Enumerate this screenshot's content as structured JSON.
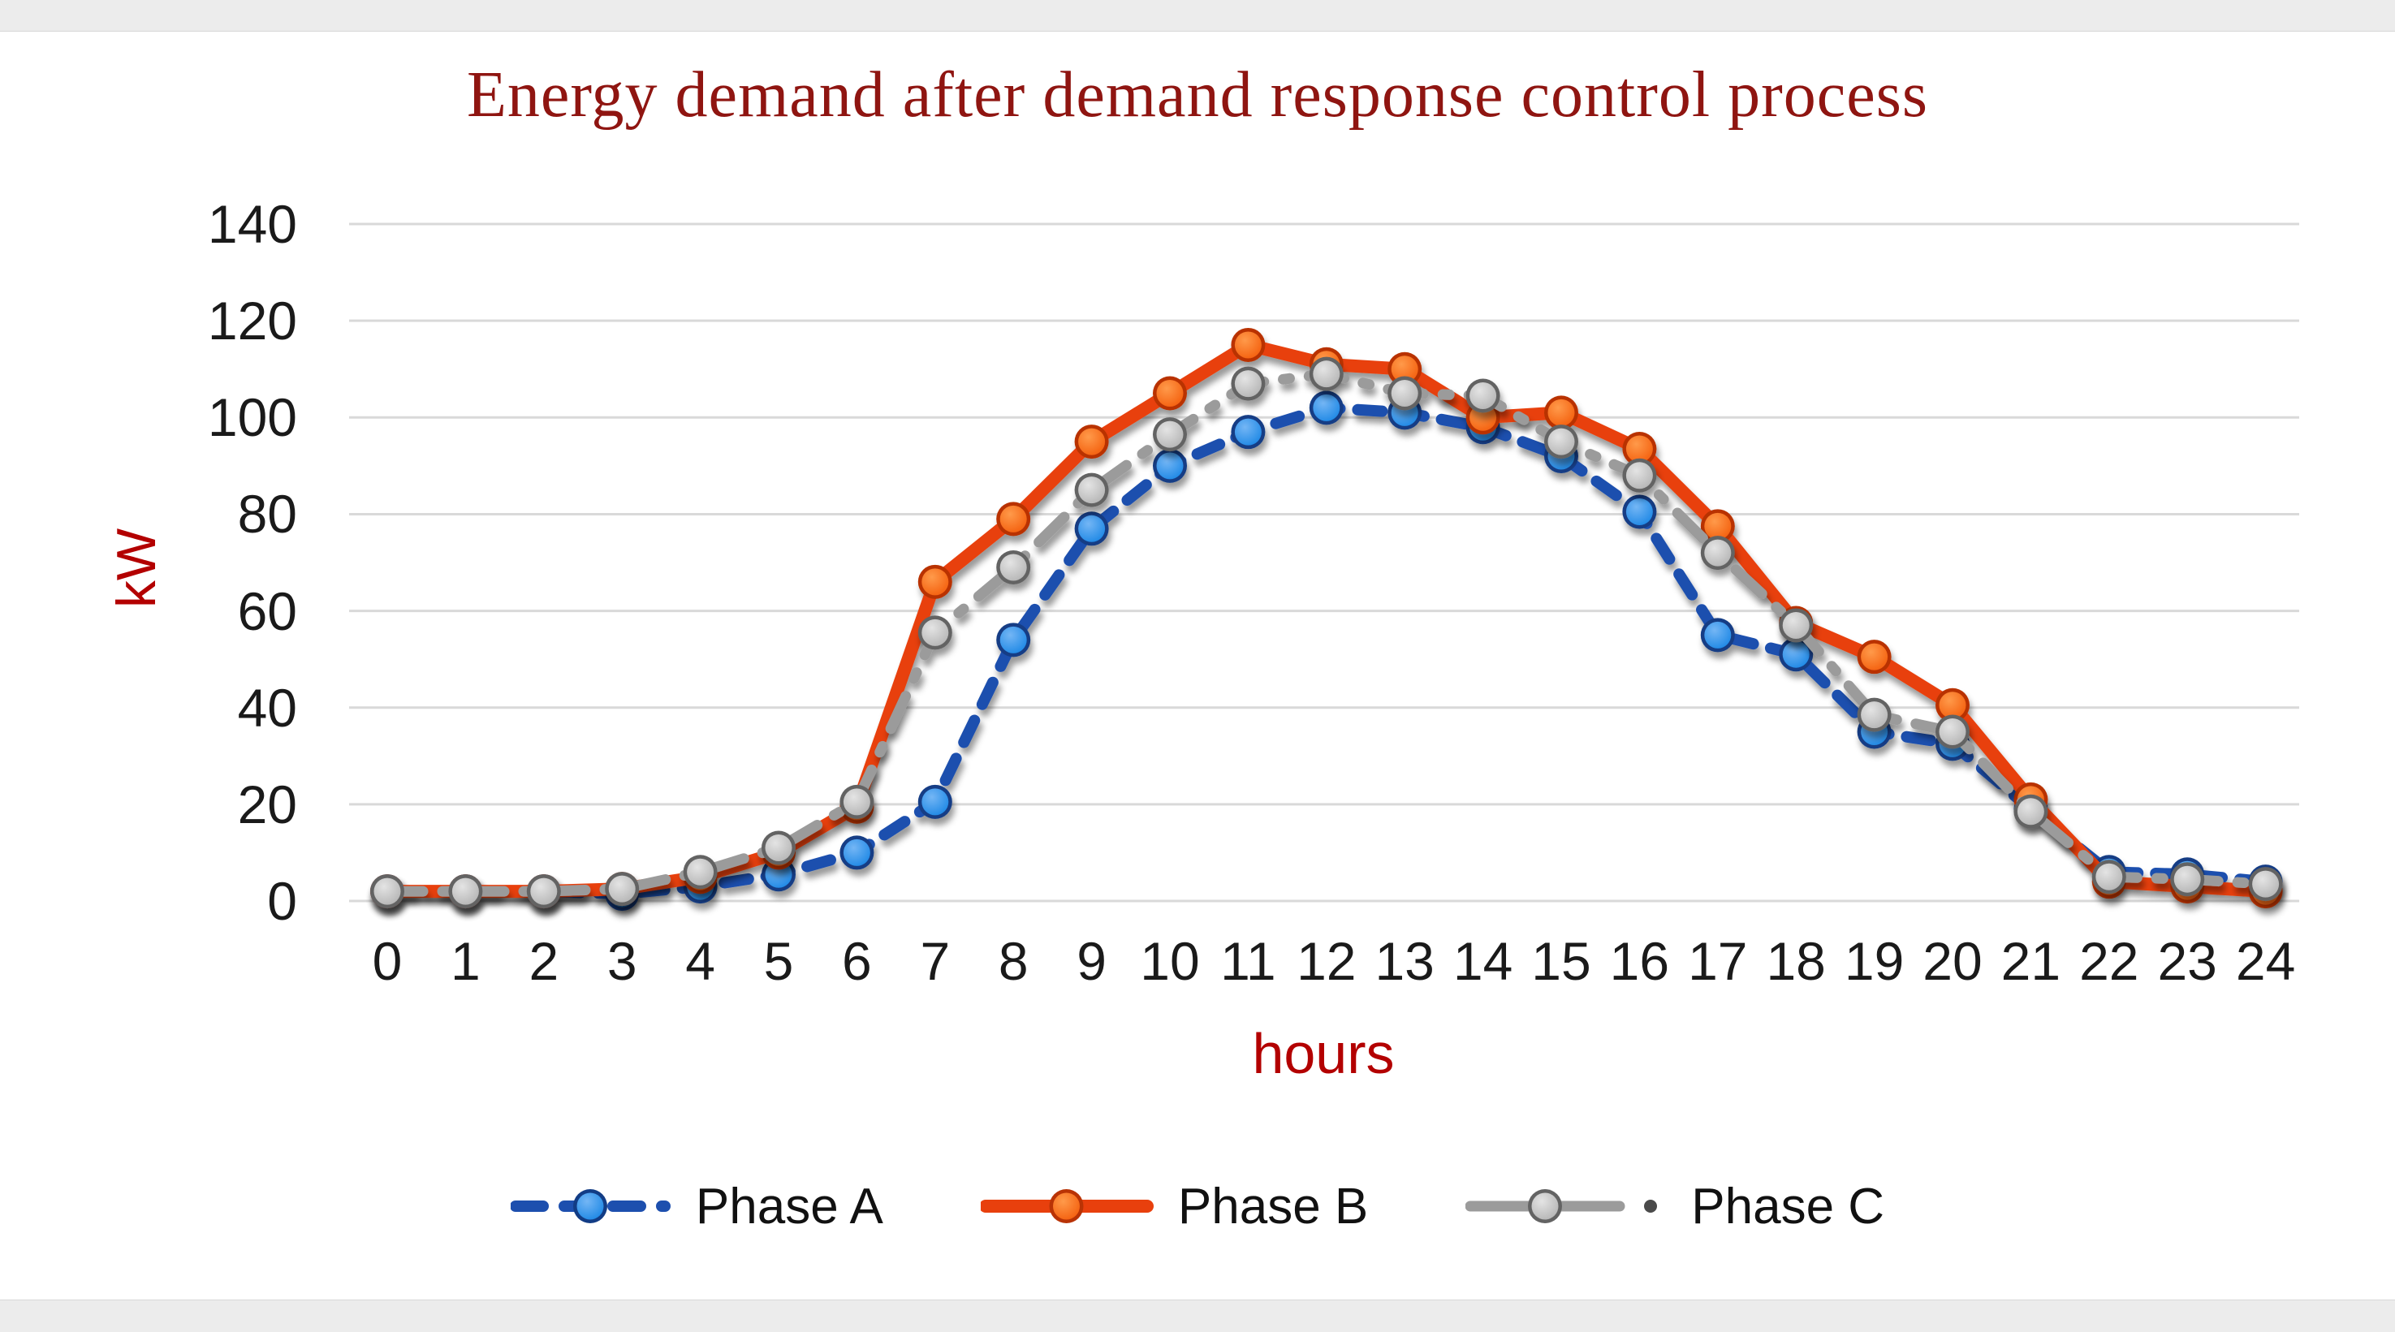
{
  "figure": {
    "page_band_color": "#ececec",
    "background": "#ffffff"
  },
  "chart_data": {
    "type": "line",
    "title": "Energy demand after demand response control process",
    "xlabel": "hours",
    "ylabel": "kW",
    "title_color": "#8f1511",
    "axis_label_color": "#b30000",
    "tick_color": "#1a1a1a",
    "gridline_color": "#d9d9d9",
    "grid": "horizontal-only",
    "x": [
      0,
      1,
      2,
      3,
      4,
      5,
      6,
      7,
      8,
      9,
      10,
      11,
      12,
      13,
      14,
      15,
      16,
      17,
      18,
      19,
      20,
      21,
      22,
      23,
      24
    ],
    "yticks": [
      0,
      20,
      40,
      60,
      80,
      100,
      120,
      140
    ],
    "ylim": [
      0,
      140
    ],
    "legend_position": "bottom",
    "series": [
      {
        "name": "Phase A",
        "style": "dashed",
        "line_color": "#1d4fae",
        "marker_color": "#1e88e5",
        "marker_light": "#74b6f5",
        "marker_edge": "#123c85",
        "values": [
          2,
          2,
          2,
          1.5,
          3,
          5.5,
          10,
          20.5,
          54,
          77,
          90,
          97,
          102,
          101,
          98,
          92,
          80.5,
          55,
          51,
          35,
          32.5,
          19,
          6,
          5.5,
          4
        ]
      },
      {
        "name": "Phase B",
        "style": "solid",
        "line_color": "#e8400d",
        "marker_color": "#f4600f",
        "marker_light": "#ff9a4a",
        "marker_edge": "#b93305",
        "values": [
          2,
          2,
          2,
          2.5,
          5,
          10,
          19.5,
          66,
          79,
          95,
          105,
          115,
          111,
          110,
          100,
          101,
          93.5,
          77.5,
          57.5,
          50.5,
          40.5,
          21,
          4,
          3,
          2
        ]
      },
      {
        "name": "Phase C",
        "style": "dash-dot",
        "line_color": "#9b9b9b",
        "marker_color": "#b5b5b5",
        "marker_light": "#e4e4e4",
        "marker_edge": "#636363",
        "values": [
          2,
          2,
          2,
          2.5,
          6,
          11,
          20.5,
          55.5,
          69,
          85,
          96.5,
          107,
          109,
          105,
          104.5,
          95,
          88,
          72,
          57,
          38.5,
          35,
          18.5,
          5,
          4.5,
          3.5
        ]
      }
    ]
  }
}
